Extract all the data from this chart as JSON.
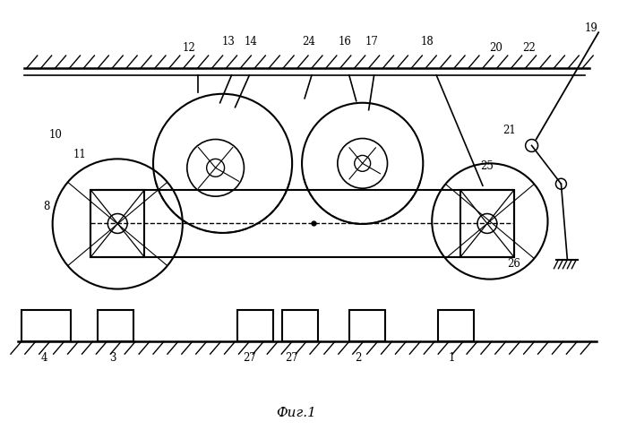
{
  "title": "Фиг.1",
  "bg_color": "#ffffff",
  "line_color": "#000000",
  "fig_width": 7.0,
  "fig_height": 4.9,
  "dpi": 100
}
